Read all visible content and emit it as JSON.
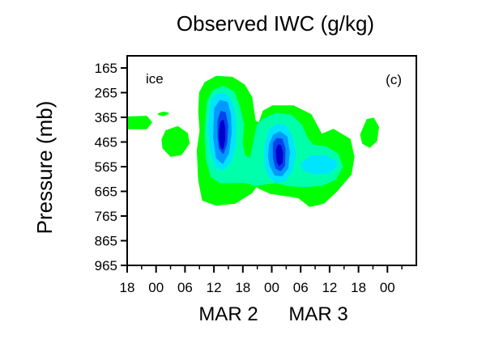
{
  "chart_data": {
    "type": "heatmap",
    "title": "Observed IWC (g/kg)",
    "ylabel": "Pressure (mb)",
    "xlabel_groups": [
      "MAR 2",
      "MAR 3"
    ],
    "x_tick_labels": [
      "18",
      "00",
      "06",
      "12",
      "18",
      "00",
      "06",
      "12",
      "18",
      "00"
    ],
    "y_tick_labels": [
      "165",
      "265",
      "365",
      "465",
      "565",
      "665",
      "765",
      "865",
      "965"
    ],
    "y_ticks": [
      165,
      265,
      365,
      465,
      565,
      665,
      765,
      865,
      965
    ],
    "ylim": [
      965,
      165
    ],
    "x_unit": "hours from 18 UTC MAR 1",
    "xlim": [
      0,
      60
    ],
    "annotations": {
      "variable": "ice",
      "panel": "(c)"
    },
    "level_colors": [
      "#00ff00",
      "#00ffaa",
      "#00e5ff",
      "#0099ff",
      "#0044ee",
      "#0000cc"
    ],
    "regions": [
      {
        "level": 0,
        "points": [
          [
            0,
            365
          ],
          [
            4,
            362
          ],
          [
            5,
            385
          ],
          [
            4,
            410
          ],
          [
            0,
            410
          ]
        ]
      },
      {
        "level": 0,
        "points": [
          [
            6.5,
            352
          ],
          [
            7.5,
            345
          ],
          [
            8.5,
            349
          ],
          [
            7.5,
            357
          ]
        ]
      },
      {
        "level": 0,
        "points": [
          [
            7.3,
            455
          ],
          [
            8.1,
            420
          ],
          [
            10.5,
            404
          ],
          [
            12.4,
            430
          ],
          [
            12.8,
            470
          ],
          [
            11.2,
            515
          ],
          [
            9.1,
            522
          ],
          [
            7.5,
            490
          ]
        ]
      },
      {
        "level": 0,
        "points": [
          [
            15.1,
            265
          ],
          [
            16.2,
            225
          ],
          [
            18.5,
            200
          ],
          [
            21.8,
            204
          ],
          [
            24.3,
            235
          ],
          [
            25.8,
            285
          ],
          [
            26.5,
            380
          ],
          [
            27.4,
            390
          ],
          [
            28.3,
            340
          ],
          [
            30.2,
            320
          ],
          [
            34.5,
            320
          ],
          [
            38.1,
            355
          ],
          [
            40.3,
            435
          ],
          [
            42.8,
            415
          ],
          [
            46.2,
            455
          ],
          [
            47,
            525
          ],
          [
            46.4,
            595
          ],
          [
            43.6,
            660
          ],
          [
            40.8,
            712
          ],
          [
            37.9,
            725
          ],
          [
            35.6,
            690
          ],
          [
            32.6,
            680
          ],
          [
            29.7,
            672
          ],
          [
            27.2,
            650
          ],
          [
            26.9,
            640
          ],
          [
            25.8,
            670
          ],
          [
            22.4,
            712
          ],
          [
            18.5,
            720
          ],
          [
            15.7,
            700
          ],
          [
            14.9,
            620
          ],
          [
            14.6,
            500
          ],
          [
            15.2,
            420
          ],
          [
            14.9,
            340
          ]
        ]
      },
      {
        "level": 0,
        "points": [
          [
            48.5,
            435
          ],
          [
            49.8,
            375
          ],
          [
            51.1,
            370
          ],
          [
            52.1,
            405
          ],
          [
            51.7,
            460
          ],
          [
            50.3,
            485
          ],
          [
            48.9,
            470
          ]
        ]
      },
      {
        "level": 1,
        "points": [
          [
            16.7,
            300
          ],
          [
            17.8,
            258
          ],
          [
            19.9,
            240
          ],
          [
            22.1,
            262
          ],
          [
            23.2,
            320
          ],
          [
            24.1,
            395
          ],
          [
            23.8,
            470
          ],
          [
            24.3,
            520
          ],
          [
            25.6,
            535
          ],
          [
            26.3,
            470
          ],
          [
            27,
            400
          ],
          [
            28.3,
            373
          ],
          [
            30.9,
            350
          ],
          [
            34.1,
            358
          ],
          [
            36.2,
            400
          ],
          [
            37.3,
            450
          ],
          [
            38.4,
            477
          ],
          [
            41.4,
            487
          ],
          [
            43.7,
            515
          ],
          [
            44.6,
            565
          ],
          [
            43.2,
            615
          ],
          [
            40.3,
            640
          ],
          [
            36.5,
            645
          ],
          [
            33.1,
            640
          ],
          [
            31,
            628
          ],
          [
            28.3,
            635
          ],
          [
            26.5,
            640
          ],
          [
            24.6,
            628
          ],
          [
            22.6,
            628
          ],
          [
            19.4,
            630
          ],
          [
            17.5,
            605
          ],
          [
            16.5,
            535
          ],
          [
            16.2,
            420
          ]
        ]
      },
      {
        "level": 2,
        "points": [
          [
            17.5,
            300
          ],
          [
            18.6,
            272
          ],
          [
            20.3,
            270
          ],
          [
            21.8,
            305
          ],
          [
            22.5,
            380
          ],
          [
            22.4,
            470
          ],
          [
            21.5,
            545
          ],
          [
            19.9,
            578
          ],
          [
            18.4,
            565
          ],
          [
            17.3,
            500
          ],
          [
            16.9,
            400
          ]
        ]
      },
      {
        "level": 2,
        "points": [
          [
            28.6,
            490
          ],
          [
            29.4,
            420
          ],
          [
            31,
            395
          ],
          [
            32.8,
            400
          ],
          [
            34.1,
            440
          ],
          [
            34.9,
            510
          ],
          [
            34.2,
            580
          ],
          [
            32.7,
            620
          ],
          [
            30.9,
            628
          ],
          [
            29.3,
            600
          ],
          [
            28.6,
            560
          ]
        ]
      },
      {
        "level": 2,
        "points": [
          [
            36.1,
            555
          ],
          [
            38.1,
            522
          ],
          [
            41,
            522
          ],
          [
            43.3,
            543
          ],
          [
            43.4,
            565
          ],
          [
            41.8,
            590
          ],
          [
            38.6,
            592
          ],
          [
            36.6,
            578
          ]
        ]
      },
      {
        "level": 3,
        "points": [
          [
            18.2,
            330
          ],
          [
            19.3,
            298
          ],
          [
            20.7,
            305
          ],
          [
            21.4,
            355
          ],
          [
            21.5,
            430
          ],
          [
            21,
            510
          ],
          [
            19.8,
            550
          ],
          [
            18.6,
            530
          ],
          [
            18,
            450
          ]
        ]
      },
      {
        "level": 3,
        "points": [
          [
            29.6,
            475
          ],
          [
            30.4,
            438
          ],
          [
            31.7,
            425
          ],
          [
            33.1,
            445
          ],
          [
            33.6,
            505
          ],
          [
            33.3,
            570
          ],
          [
            32.1,
            600
          ],
          [
            30.7,
            598
          ],
          [
            29.7,
            560
          ],
          [
            29.4,
            520
          ]
        ]
      },
      {
        "level": 4,
        "points": [
          [
            18.9,
            380
          ],
          [
            19.5,
            342
          ],
          [
            20.3,
            347
          ],
          [
            20.8,
            400
          ],
          [
            20.6,
            470
          ],
          [
            19.9,
            510
          ],
          [
            19.2,
            490
          ],
          [
            18.9,
            440
          ]
        ]
      },
      {
        "level": 4,
        "points": [
          [
            30.4,
            470
          ],
          [
            31.1,
            452
          ],
          [
            32.1,
            455
          ],
          [
            32.7,
            492
          ],
          [
            32.6,
            560
          ],
          [
            31.8,
            580
          ],
          [
            30.9,
            570
          ],
          [
            30.4,
            530
          ]
        ]
      },
      {
        "level": 5,
        "points": [
          [
            19.2,
            420
          ],
          [
            19.5,
            385
          ],
          [
            19.9,
            378
          ],
          [
            20.2,
            410
          ],
          [
            20.2,
            455
          ],
          [
            19.8,
            492
          ],
          [
            19.4,
            480
          ],
          [
            19.2,
            450
          ]
        ]
      },
      {
        "level": 5,
        "points": [
          [
            31,
            500
          ],
          [
            31.4,
            478
          ],
          [
            31.8,
            480
          ],
          [
            32.2,
            510
          ],
          [
            32.1,
            548
          ],
          [
            31.6,
            558
          ],
          [
            31.2,
            545
          ]
        ]
      }
    ]
  }
}
